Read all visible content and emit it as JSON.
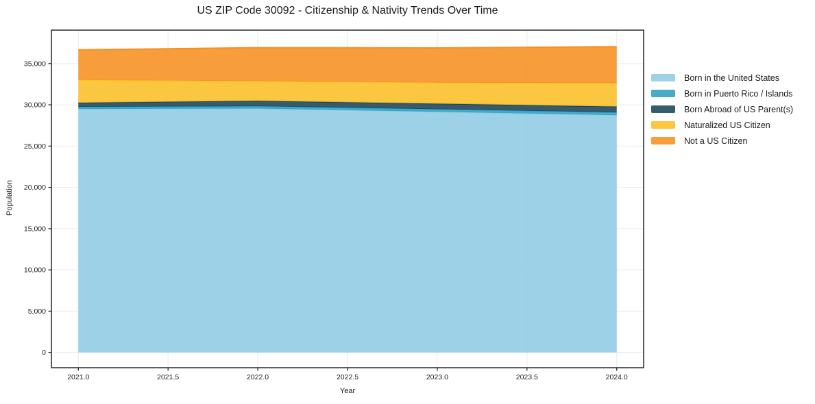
{
  "title": "US ZIP Code 30092 - Citizenship & Nativity Trends Over Time",
  "chart_data": {
    "type": "area",
    "stacked": true,
    "title": "US ZIP Code 30092 - Citizenship & Nativity Trends Over Time",
    "xlabel": "Year",
    "ylabel": "Population",
    "x": [
      2021,
      2022,
      2023,
      2024
    ],
    "series": [
      {
        "name": "Born in the United States",
        "color": "#8ecbe5",
        "values": [
          29500,
          29550,
          29150,
          28750
        ]
      },
      {
        "name": "Born in Puerto Rico / Islands",
        "color": "#2d9fc1",
        "values": [
          260,
          280,
          330,
          340
        ]
      },
      {
        "name": "Born Abroad of US Parent(s)",
        "color": "#1b4459",
        "values": [
          500,
          650,
          660,
          700
        ]
      },
      {
        "name": "Naturalized US Citizen",
        "color": "#fcbf25",
        "values": [
          2750,
          2400,
          2550,
          2850
        ]
      },
      {
        "name": "Not a US Citizen",
        "color": "#f78f20",
        "values": [
          3650,
          4050,
          4200,
          4400
        ]
      }
    ],
    "stack_totals": [
      36660,
      36930,
      36890,
      37040
    ],
    "x_ticks": {
      "values": [
        2021.0,
        2021.5,
        2022.0,
        2022.5,
        2023.0,
        2023.5,
        2024.0
      ],
      "labels": [
        "2021.0",
        "2021.5",
        "2022.0",
        "2022.5",
        "2023.0",
        "2023.5",
        "2024.0"
      ]
    },
    "y_ticks": {
      "values": [
        0,
        5000,
        10000,
        15000,
        20000,
        25000,
        30000,
        35000
      ],
      "labels": [
        "0",
        "5,000",
        "10,000",
        "15,000",
        "20,000",
        "25,000",
        "30,000",
        "35,000"
      ]
    },
    "xlim": [
      2020.85,
      2024.15
    ],
    "ylim": [
      -1850,
      39050
    ],
    "grid": true,
    "grid_color": "#e9e9e9",
    "spine_color": "#1a1a1a",
    "fill_alpha": 0.88,
    "legend_position": "right"
  }
}
